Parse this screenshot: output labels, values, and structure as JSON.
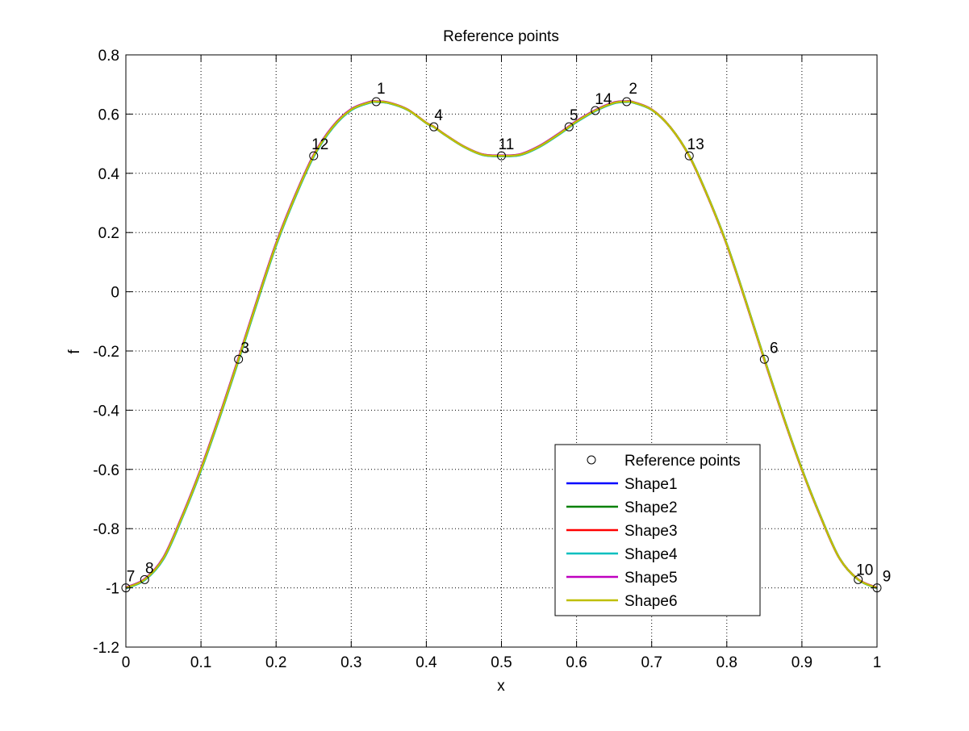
{
  "chart_data": {
    "type": "line",
    "title": "Reference points",
    "xlabel": "x",
    "ylabel": "f",
    "xlim": [
      0,
      1
    ],
    "ylim": [
      -1.2,
      0.8
    ],
    "grid": true,
    "legend_position": "bottom-right",
    "x_ticks": [
      "0",
      "0.1",
      "0.2",
      "0.3",
      "0.4",
      "0.5",
      "0.6",
      "0.7",
      "0.8",
      "0.9",
      "1"
    ],
    "y_ticks": [
      "-1.2",
      "-1",
      "-0.8",
      "-0.6",
      "-0.4",
      "-0.2",
      "0",
      "0.2",
      "0.4",
      "0.6",
      "0.8"
    ],
    "reference_points": {
      "name": "Reference points",
      "points": [
        {
          "label": "1",
          "x": 0.3333,
          "y": 0.642
        },
        {
          "label": "2",
          "x": 0.6667,
          "y": 0.642
        },
        {
          "label": "3",
          "x": 0.15,
          "y": -0.228
        },
        {
          "label": "4",
          "x": 0.41,
          "y": 0.557
        },
        {
          "label": "5",
          "x": 0.59,
          "y": 0.557
        },
        {
          "label": "6",
          "x": 0.85,
          "y": -0.228
        },
        {
          "label": "7",
          "x": 0.0,
          "y": -1.0
        },
        {
          "label": "8",
          "x": 0.025,
          "y": -0.972
        },
        {
          "label": "9",
          "x": 1.0,
          "y": -1.0
        },
        {
          "label": "10",
          "x": 0.975,
          "y": -0.972
        },
        {
          "label": "11",
          "x": 0.5,
          "y": 0.459
        },
        {
          "label": "12",
          "x": 0.25,
          "y": 0.459
        },
        {
          "label": "13",
          "x": 0.75,
          "y": 0.459
        },
        {
          "label": "14",
          "x": 0.625,
          "y": 0.612
        }
      ]
    },
    "series": [
      {
        "name": "Shape1",
        "color": "#0000ff"
      },
      {
        "name": "Shape2",
        "color": "#008000"
      },
      {
        "name": "Shape3",
        "color": "#ff0000"
      },
      {
        "name": "Shape4",
        "color": "#00bfbf"
      },
      {
        "name": "Shape5",
        "color": "#bf00bf"
      },
      {
        "name": "Shape6",
        "color": "#bfbf00"
      }
    ],
    "curve": {
      "x": [
        0,
        0.025,
        0.05,
        0.075,
        0.1,
        0.125,
        0.15,
        0.175,
        0.2,
        0.225,
        0.25,
        0.275,
        0.3,
        0.325,
        0.3333,
        0.35,
        0.375,
        0.4,
        0.41,
        0.425,
        0.45,
        0.475,
        0.5,
        0.525,
        0.55,
        0.575,
        0.59,
        0.6,
        0.625,
        0.65,
        0.6667,
        0.675,
        0.7,
        0.725,
        0.75,
        0.775,
        0.8,
        0.825,
        0.85,
        0.875,
        0.9,
        0.925,
        0.95,
        0.975,
        1
      ],
      "y": [
        -1.0,
        -0.972,
        -0.9,
        -0.76,
        -0.6,
        -0.42,
        -0.228,
        -0.03,
        0.16,
        0.32,
        0.459,
        0.555,
        0.615,
        0.64,
        0.642,
        0.638,
        0.615,
        0.57,
        0.557,
        0.53,
        0.49,
        0.463,
        0.459,
        0.463,
        0.49,
        0.53,
        0.557,
        0.575,
        0.612,
        0.638,
        0.642,
        0.64,
        0.615,
        0.555,
        0.459,
        0.32,
        0.16,
        -0.03,
        -0.228,
        -0.42,
        -0.6,
        -0.76,
        -0.9,
        -0.972,
        -1.0
      ]
    }
  }
}
